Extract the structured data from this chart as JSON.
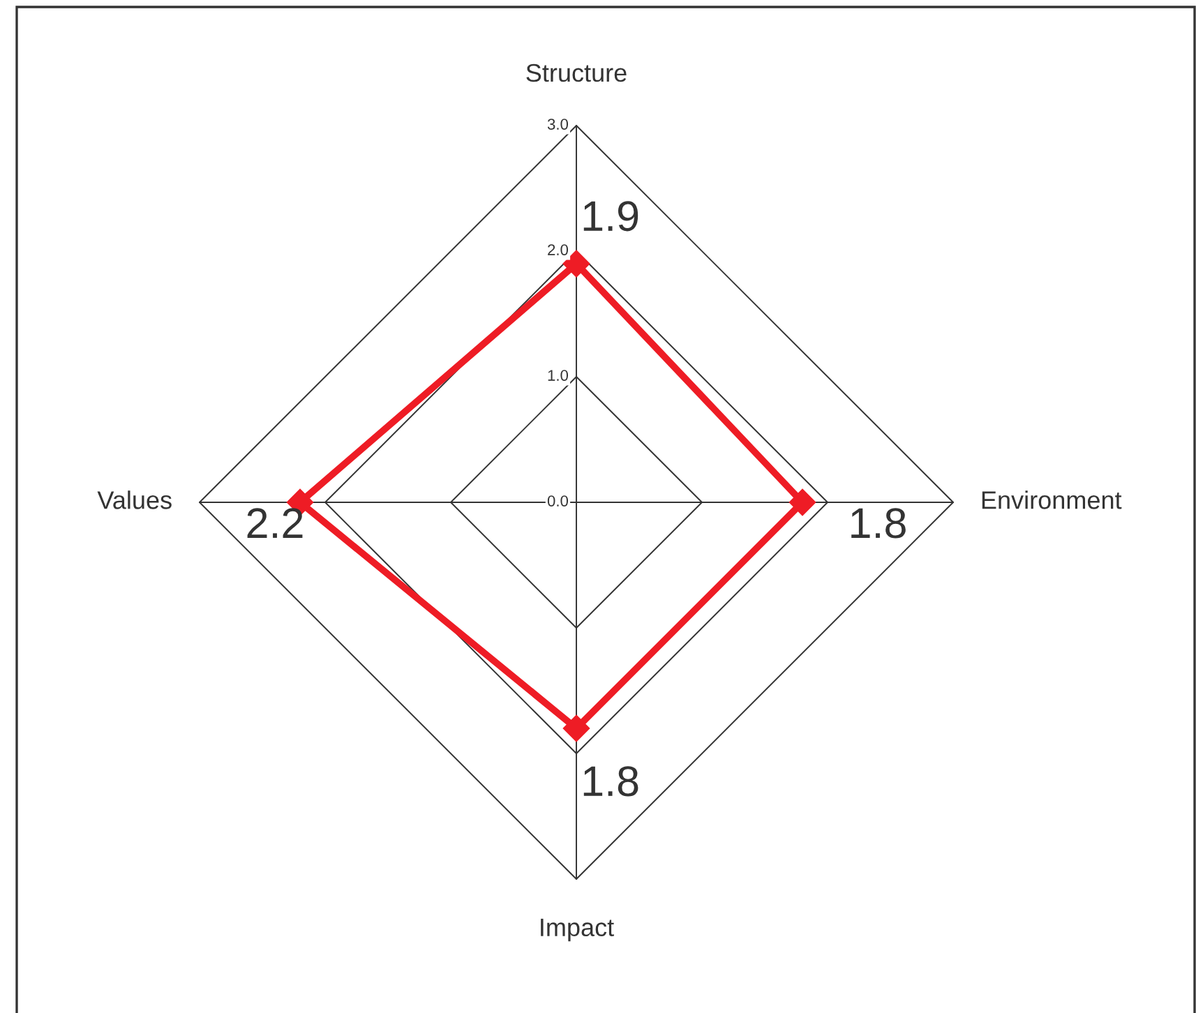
{
  "chart_data": {
    "type": "radar",
    "categories": [
      "Structure",
      "Environment",
      "Impact",
      "Values"
    ],
    "series": [
      {
        "color": "#ee1c25",
        "values": [
          1.9,
          1.8,
          1.8,
          2.2
        ]
      }
    ],
    "ylim": [
      0,
      3
    ],
    "yticks": [
      {
        "value": 0,
        "label": "0.0"
      },
      {
        "value": 1,
        "label": "1.0"
      },
      {
        "value": 2,
        "label": "2.0"
      },
      {
        "value": 3,
        "label": "3.0"
      }
    ],
    "data_labels": true,
    "marker": "diamond",
    "line_style": "solid",
    "grid": true
  }
}
